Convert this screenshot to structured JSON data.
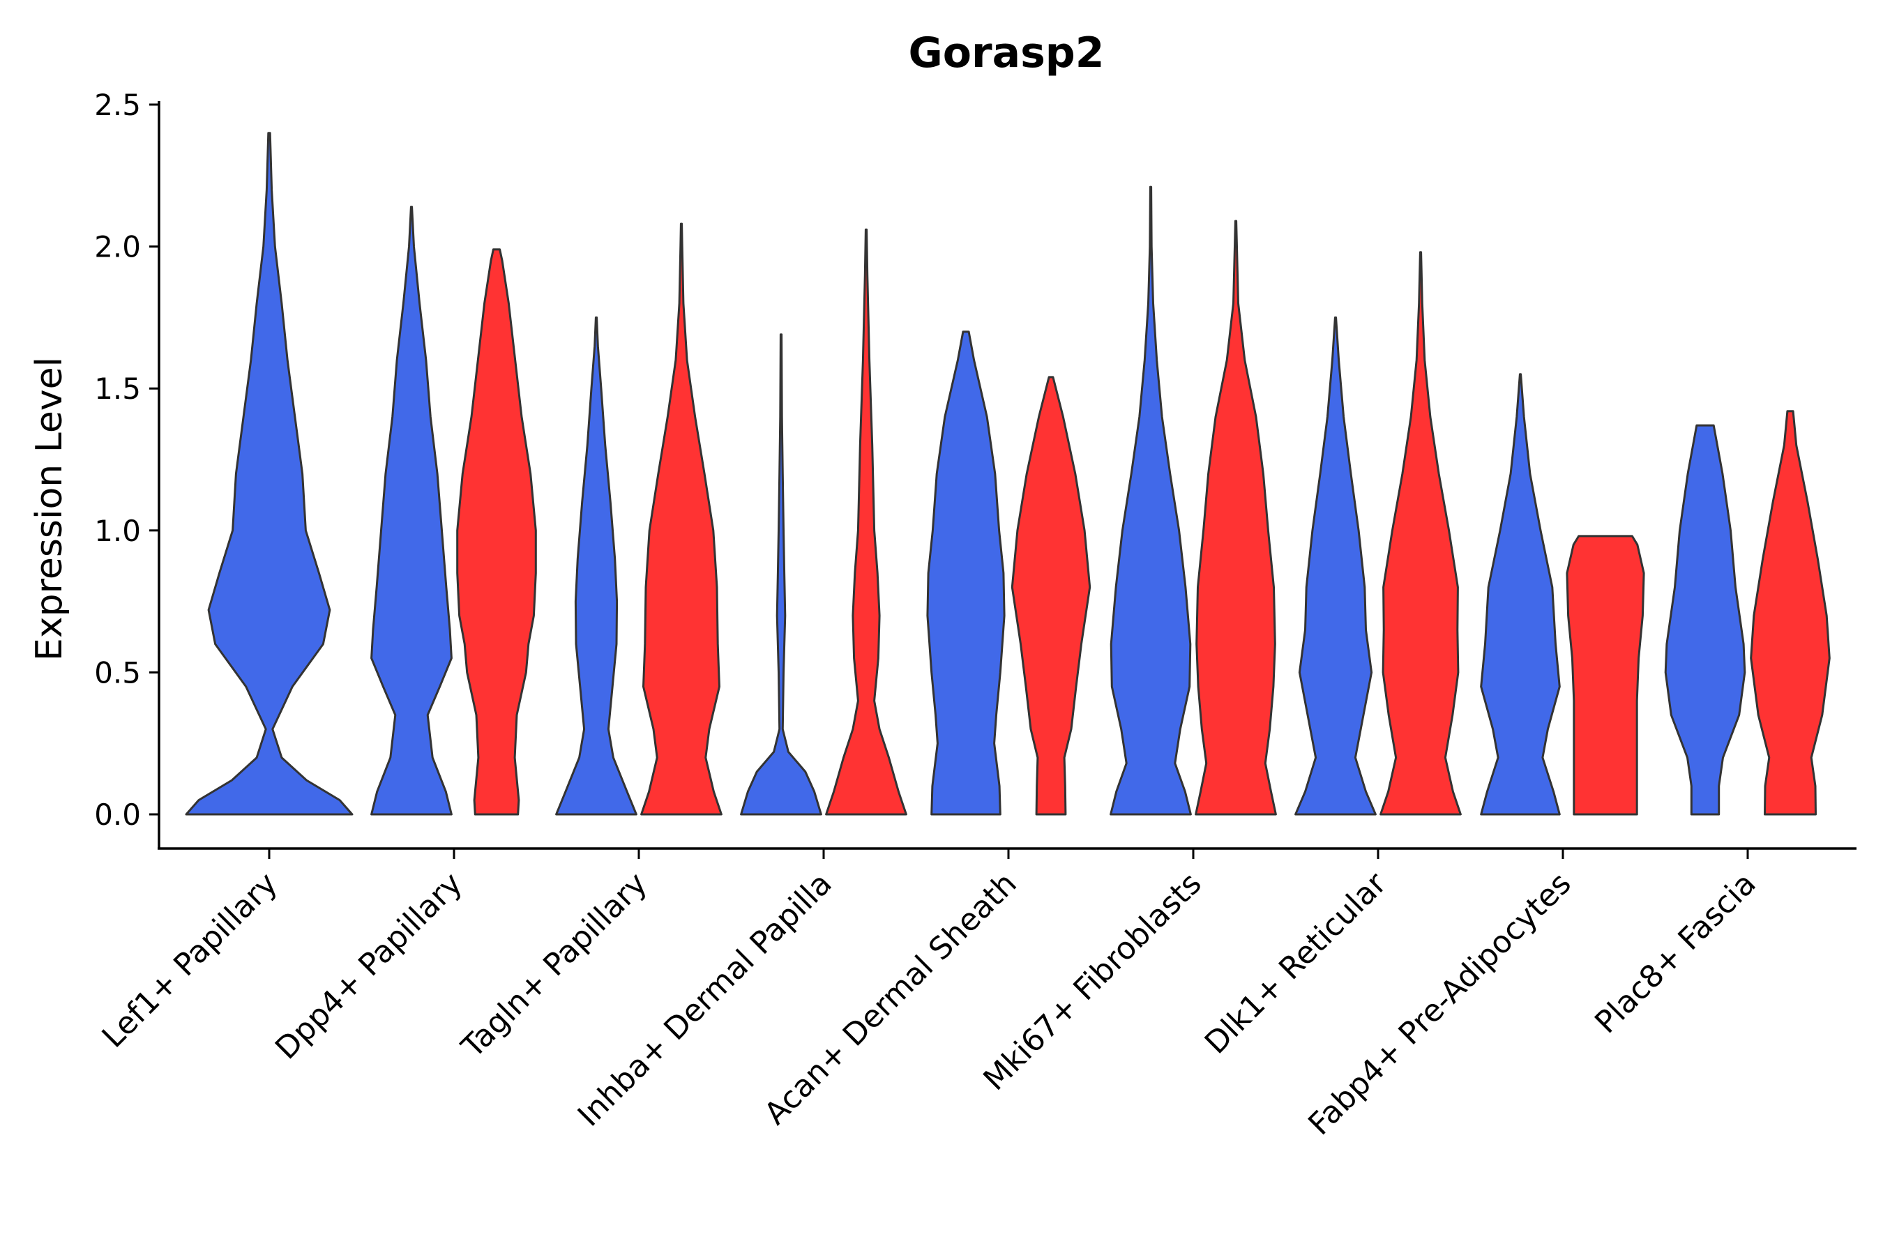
{
  "chart_data": {
    "type": "violin",
    "title": "Gorasp2",
    "xlabel": "",
    "ylabel": "Expression Level",
    "ylim": [
      0,
      2.5
    ],
    "yticks": [
      0.0,
      0.5,
      1.0,
      1.5,
      2.0,
      2.5
    ],
    "ytick_labels": [
      "0.0",
      "0.5",
      "1.0",
      "1.5",
      "2.0",
      "2.5"
    ],
    "grid": false,
    "colors": {
      "blue": "#4169E9",
      "red": "#FF3333"
    },
    "categories": [
      "Lef1+ Papillary",
      "Dpp4+ Papillary",
      "Tagln+ Papillary",
      "Inhba+ Dermal Papilla",
      "Acan+ Dermal Sheath",
      "Mki67+ Fibroblasts",
      "Dlk1+ Reticular",
      "Fabp4+ Pre-Adipocytes",
      "Plac8+ Fascia"
    ],
    "violins": [
      {
        "category": "Lef1+ Papillary",
        "group": "blue",
        "ymax": 2.4,
        "profile": [
          [
            0,
            1.0
          ],
          [
            0.05,
            0.85
          ],
          [
            0.12,
            0.45
          ],
          [
            0.2,
            0.15
          ],
          [
            0.3,
            0.04
          ],
          [
            0.45,
            0.28
          ],
          [
            0.6,
            0.65
          ],
          [
            0.72,
            0.73
          ],
          [
            0.85,
            0.6
          ],
          [
            1.0,
            0.44
          ],
          [
            1.2,
            0.4
          ],
          [
            1.4,
            0.31
          ],
          [
            1.6,
            0.22
          ],
          [
            1.8,
            0.15
          ],
          [
            2.0,
            0.07
          ],
          [
            2.2,
            0.03
          ],
          [
            2.4,
            0.01
          ]
        ]
      },
      {
        "category": "Dpp4+ Papillary",
        "group": "blue",
        "ymax": 2.14,
        "profile": [
          [
            0,
            0.99
          ],
          [
            0.08,
            0.85
          ],
          [
            0.2,
            0.52
          ],
          [
            0.35,
            0.4
          ],
          [
            0.45,
            0.7
          ],
          [
            0.55,
            0.99
          ],
          [
            0.65,
            0.95
          ],
          [
            0.8,
            0.86
          ],
          [
            1.0,
            0.75
          ],
          [
            1.2,
            0.64
          ],
          [
            1.4,
            0.47
          ],
          [
            1.6,
            0.36
          ],
          [
            1.8,
            0.2
          ],
          [
            2.0,
            0.06
          ],
          [
            2.14,
            0.01
          ]
        ]
      },
      {
        "category": "Dpp4+ Papillary",
        "group": "red",
        "ymax": 1.99,
        "profile": [
          [
            0,
            0.53
          ],
          [
            0.05,
            0.55
          ],
          [
            0.2,
            0.45
          ],
          [
            0.35,
            0.5
          ],
          [
            0.5,
            0.73
          ],
          [
            0.6,
            0.79
          ],
          [
            0.7,
            0.92
          ],
          [
            0.85,
            0.97
          ],
          [
            1.0,
            0.97
          ],
          [
            1.2,
            0.84
          ],
          [
            1.4,
            0.62
          ],
          [
            1.6,
            0.46
          ],
          [
            1.8,
            0.3
          ],
          [
            1.95,
            0.14
          ],
          [
            1.99,
            0.08
          ]
        ]
      },
      {
        "category": "Tagln+ Papillary",
        "group": "blue",
        "ymax": 1.75,
        "profile": [
          [
            0,
            0.99
          ],
          [
            0.08,
            0.76
          ],
          [
            0.2,
            0.42
          ],
          [
            0.3,
            0.3
          ],
          [
            0.45,
            0.4
          ],
          [
            0.6,
            0.5
          ],
          [
            0.75,
            0.51
          ],
          [
            0.9,
            0.46
          ],
          [
            1.1,
            0.35
          ],
          [
            1.3,
            0.22
          ],
          [
            1.5,
            0.12
          ],
          [
            1.65,
            0.04
          ],
          [
            1.75,
            0.01
          ]
        ]
      },
      {
        "category": "Tagln+ Papillary",
        "group": "red",
        "ymax": 2.08,
        "profile": [
          [
            0,
            0.99
          ],
          [
            0.08,
            0.8
          ],
          [
            0.2,
            0.6
          ],
          [
            0.3,
            0.69
          ],
          [
            0.45,
            0.94
          ],
          [
            0.6,
            0.9
          ],
          [
            0.8,
            0.88
          ],
          [
            1.0,
            0.79
          ],
          [
            1.2,
            0.57
          ],
          [
            1.4,
            0.34
          ],
          [
            1.6,
            0.14
          ],
          [
            1.8,
            0.05
          ],
          [
            2.0,
            0.02
          ],
          [
            2.08,
            0.01
          ]
        ]
      },
      {
        "category": "Inhba+ Dermal Papilla",
        "group": "blue",
        "ymax": 1.69,
        "profile": [
          [
            0,
            0.99
          ],
          [
            0.08,
            0.82
          ],
          [
            0.15,
            0.6
          ],
          [
            0.22,
            0.18
          ],
          [
            0.3,
            0.04
          ],
          [
            0.5,
            0.06
          ],
          [
            0.7,
            0.1
          ],
          [
            0.85,
            0.08
          ],
          [
            1.0,
            0.06
          ],
          [
            1.2,
            0.04
          ],
          [
            1.4,
            0.02
          ],
          [
            1.69,
            0.01
          ]
        ]
      },
      {
        "category": "Inhba+ Dermal Papilla",
        "group": "red",
        "ymax": 2.06,
        "profile": [
          [
            0,
            0.99
          ],
          [
            0.08,
            0.8
          ],
          [
            0.2,
            0.56
          ],
          [
            0.3,
            0.33
          ],
          [
            0.4,
            0.2
          ],
          [
            0.55,
            0.3
          ],
          [
            0.7,
            0.33
          ],
          [
            0.85,
            0.28
          ],
          [
            1.0,
            0.2
          ],
          [
            1.3,
            0.15
          ],
          [
            1.6,
            0.08
          ],
          [
            1.9,
            0.03
          ],
          [
            2.06,
            0.01
          ]
        ]
      },
      {
        "category": "Acan+ Dermal Sheath",
        "group": "blue",
        "ymax": 1.7,
        "profile": [
          [
            0,
            0.85
          ],
          [
            0.1,
            0.83
          ],
          [
            0.25,
            0.7
          ],
          [
            0.35,
            0.75
          ],
          [
            0.5,
            0.85
          ],
          [
            0.7,
            0.95
          ],
          [
            0.85,
            0.93
          ],
          [
            1.0,
            0.82
          ],
          [
            1.2,
            0.72
          ],
          [
            1.4,
            0.52
          ],
          [
            1.6,
            0.2
          ],
          [
            1.7,
            0.07
          ]
        ]
      },
      {
        "category": "Acan+ Dermal Sheath",
        "group": "red",
        "ymax": 1.54,
        "profile": [
          [
            0,
            0.36
          ],
          [
            0.1,
            0.35
          ],
          [
            0.2,
            0.33
          ],
          [
            0.3,
            0.5
          ],
          [
            0.45,
            0.62
          ],
          [
            0.6,
            0.75
          ],
          [
            0.8,
            0.96
          ],
          [
            1.0,
            0.83
          ],
          [
            1.2,
            0.6
          ],
          [
            1.4,
            0.3
          ],
          [
            1.54,
            0.05
          ]
        ]
      },
      {
        "category": "Mki67+ Fibroblasts",
        "group": "blue",
        "ymax": 2.21,
        "profile": [
          [
            0,
            0.99
          ],
          [
            0.08,
            0.85
          ],
          [
            0.18,
            0.6
          ],
          [
            0.3,
            0.73
          ],
          [
            0.45,
            0.96
          ],
          [
            0.6,
            0.98
          ],
          [
            0.8,
            0.86
          ],
          [
            1.0,
            0.7
          ],
          [
            1.2,
            0.48
          ],
          [
            1.4,
            0.28
          ],
          [
            1.6,
            0.15
          ],
          [
            1.8,
            0.06
          ],
          [
            2.0,
            0.02
          ],
          [
            2.21,
            0.01
          ]
        ]
      },
      {
        "category": "Mki67+ Fibroblasts",
        "group": "red",
        "ymax": 2.09,
        "profile": [
          [
            0,
            0.99
          ],
          [
            0.08,
            0.87
          ],
          [
            0.18,
            0.73
          ],
          [
            0.3,
            0.84
          ],
          [
            0.45,
            0.93
          ],
          [
            0.6,
            0.97
          ],
          [
            0.8,
            0.94
          ],
          [
            1.0,
            0.8
          ],
          [
            1.2,
            0.68
          ],
          [
            1.4,
            0.5
          ],
          [
            1.6,
            0.22
          ],
          [
            1.8,
            0.06
          ],
          [
            2.09,
            0.01
          ]
        ]
      },
      {
        "category": "Dlk1+ Reticular",
        "group": "blue",
        "ymax": 1.75,
        "profile": [
          [
            0,
            0.99
          ],
          [
            0.08,
            0.75
          ],
          [
            0.2,
            0.49
          ],
          [
            0.35,
            0.69
          ],
          [
            0.5,
            0.89
          ],
          [
            0.65,
            0.75
          ],
          [
            0.8,
            0.72
          ],
          [
            1.0,
            0.57
          ],
          [
            1.2,
            0.38
          ],
          [
            1.4,
            0.2
          ],
          [
            1.6,
            0.08
          ],
          [
            1.75,
            0.01
          ]
        ]
      },
      {
        "category": "Dlk1+ Reticular",
        "group": "red",
        "ymax": 1.98,
        "profile": [
          [
            0,
            0.99
          ],
          [
            0.08,
            0.8
          ],
          [
            0.2,
            0.61
          ],
          [
            0.35,
            0.79
          ],
          [
            0.5,
            0.93
          ],
          [
            0.65,
            0.91
          ],
          [
            0.8,
            0.92
          ],
          [
            1.0,
            0.7
          ],
          [
            1.2,
            0.45
          ],
          [
            1.4,
            0.24
          ],
          [
            1.6,
            0.1
          ],
          [
            1.8,
            0.04
          ],
          [
            1.98,
            0.01
          ]
        ]
      },
      {
        "category": "Fabp4+ Pre-Adipocytes",
        "group": "blue",
        "ymax": 1.55,
        "profile": [
          [
            0,
            0.97
          ],
          [
            0.08,
            0.82
          ],
          [
            0.2,
            0.55
          ],
          [
            0.3,
            0.68
          ],
          [
            0.45,
            0.97
          ],
          [
            0.6,
            0.87
          ],
          [
            0.8,
            0.79
          ],
          [
            1.0,
            0.5
          ],
          [
            1.2,
            0.24
          ],
          [
            1.4,
            0.09
          ],
          [
            1.55,
            0.01
          ]
        ]
      },
      {
        "category": "Fabp4+ Pre-Adipocytes",
        "group": "red",
        "ymax": 0.98,
        "profile": [
          [
            0,
            0.78
          ],
          [
            0.2,
            0.78
          ],
          [
            0.4,
            0.78
          ],
          [
            0.55,
            0.82
          ],
          [
            0.7,
            0.92
          ],
          [
            0.85,
            0.95
          ],
          [
            0.95,
            0.79
          ],
          [
            0.98,
            0.66
          ]
        ]
      },
      {
        "category": "Plac8+ Fascia",
        "group": "blue",
        "ymax": 1.37,
        "profile": [
          [
            0,
            0.34
          ],
          [
            0.1,
            0.34
          ],
          [
            0.2,
            0.44
          ],
          [
            0.35,
            0.84
          ],
          [
            0.5,
            0.98
          ],
          [
            0.6,
            0.95
          ],
          [
            0.8,
            0.75
          ],
          [
            1.0,
            0.63
          ],
          [
            1.2,
            0.43
          ],
          [
            1.37,
            0.21
          ]
        ]
      },
      {
        "category": "Plac8+ Fascia",
        "group": "red",
        "ymax": 1.42,
        "profile": [
          [
            0,
            0.63
          ],
          [
            0.1,
            0.62
          ],
          [
            0.2,
            0.52
          ],
          [
            0.35,
            0.79
          ],
          [
            0.55,
            0.97
          ],
          [
            0.7,
            0.9
          ],
          [
            0.9,
            0.68
          ],
          [
            1.1,
            0.43
          ],
          [
            1.3,
            0.15
          ],
          [
            1.42,
            0.07
          ]
        ]
      }
    ]
  }
}
